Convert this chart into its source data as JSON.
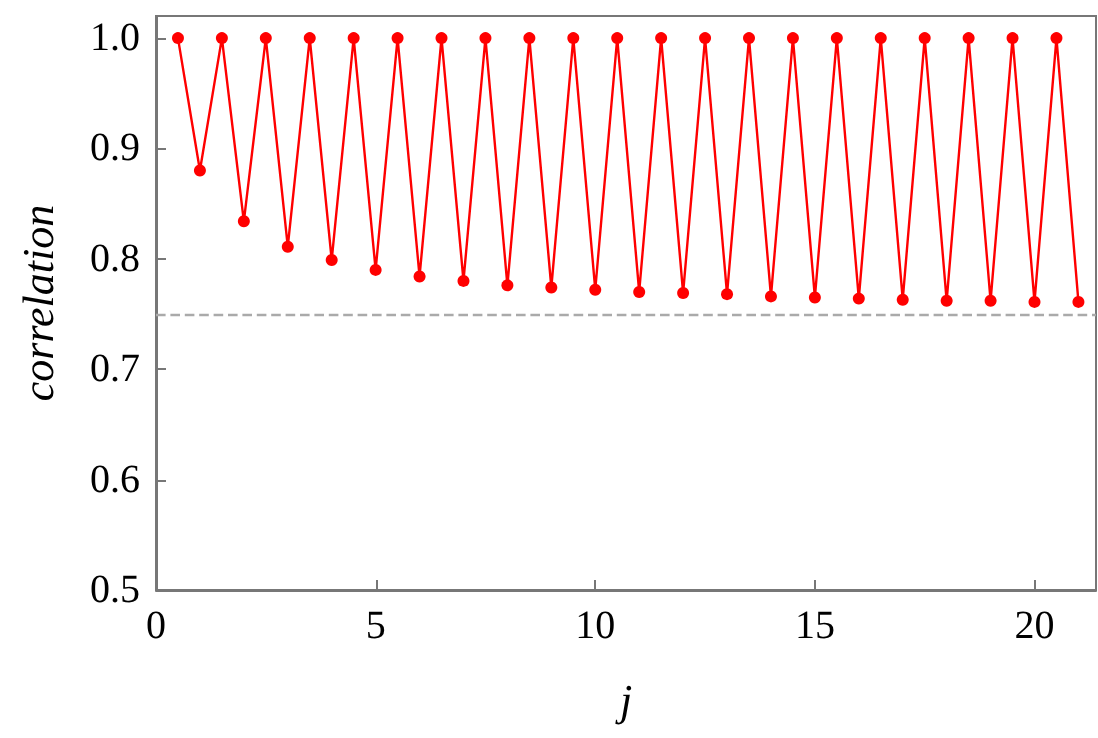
{
  "chart_data": {
    "type": "line",
    "xlabel": "j",
    "ylabel": "correlation",
    "x": [
      0.5,
      1,
      1.5,
      2,
      2.5,
      3,
      3.5,
      4,
      4.5,
      5,
      5.5,
      6,
      6.5,
      7,
      7.5,
      8,
      8.5,
      9,
      9.5,
      10,
      10.5,
      11,
      11.5,
      12,
      12.5,
      13,
      13.5,
      14,
      14.5,
      15,
      15.5,
      16,
      16.5,
      17,
      17.5,
      18,
      18.5,
      19,
      19.5,
      20,
      20.5,
      21
    ],
    "series": [
      {
        "color": "#ff0000",
        "values": [
          1.0,
          0.88,
          1.0,
          0.834,
          1.0,
          0.811,
          1.0,
          0.799,
          1.0,
          0.79,
          1.0,
          0.784,
          1.0,
          0.78,
          1.0,
          0.776,
          1.0,
          0.774,
          1.0,
          0.772,
          1.0,
          0.77,
          1.0,
          0.769,
          1.0,
          0.768,
          1.0,
          0.766,
          1.0,
          0.765,
          1.0,
          0.764,
          1.0,
          0.763,
          1.0,
          0.762,
          1.0,
          0.762,
          1.0,
          0.761,
          1.0,
          0.761
        ]
      }
    ],
    "xlim": [
      0,
      21.4
    ],
    "xticks": [
      0,
      5,
      10,
      15,
      20
    ],
    "ylim": [
      0.5,
      1.02
    ],
    "yticks": [
      0.5,
      0.6,
      0.7,
      0.8,
      0.9,
      {
        "value": 1,
        "label": "1.0"
      }
    ],
    "ref_lines": [
      {
        "axis": "y",
        "value": 0.75,
        "color": "#aaaaaa",
        "line_style": "dashed"
      }
    ],
    "grid": false,
    "marker": "circle",
    "line_style": "solid"
  }
}
